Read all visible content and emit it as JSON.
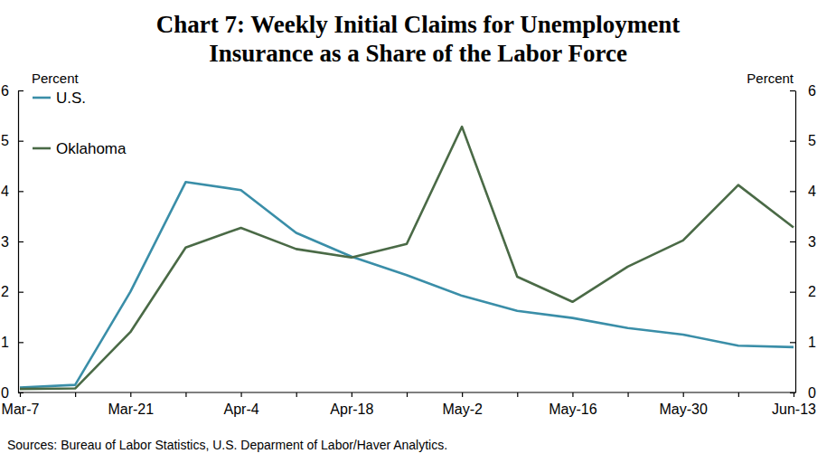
{
  "chart_data": {
    "type": "line",
    "title": "Chart 7: Weekly Initial Claims for Unemployment\nInsurance as a Share of the Labor Force",
    "y_label": "Percent",
    "source": "Sources: Bureau of Labor Statistics, U.S. Deparment of Labor/Haver Analytics.",
    "categories": [
      "Mar-7",
      null,
      "Mar-21",
      null,
      "Apr-4",
      null,
      "Apr-18",
      null,
      "May-2",
      null,
      "May-16",
      null,
      "May-30",
      null,
      "Jun-13"
    ],
    "series": [
      {
        "name": "U.S.",
        "color": "#3a8ea8",
        "values": [
          0.1,
          0.15,
          2.0,
          4.18,
          4.02,
          3.17,
          2.7,
          2.33,
          1.92,
          1.62,
          1.48,
          1.28,
          1.15,
          0.93,
          0.9
        ]
      },
      {
        "name": "Oklahoma",
        "color": "#4a6a46",
        "values": [
          0.07,
          0.08,
          1.2,
          2.88,
          3.27,
          2.85,
          2.68,
          2.95,
          5.28,
          2.3,
          1.8,
          2.5,
          3.02,
          4.12,
          3.28
        ]
      }
    ],
    "ylim": [
      0,
      6
    ],
    "yticks": [
      0,
      1,
      2,
      3,
      4,
      5,
      6
    ],
    "legend": "upper left",
    "grid": false
  }
}
